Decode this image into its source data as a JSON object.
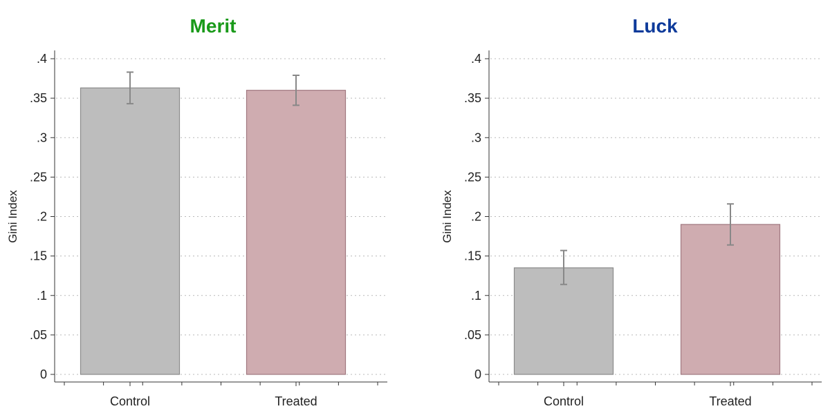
{
  "chart_data": [
    {
      "type": "bar",
      "title": "Merit",
      "title_color": "#1a9a1a",
      "ylabel": "Gini Index",
      "categories": [
        "Control",
        "Treated"
      ],
      "values": [
        0.363,
        0.36
      ],
      "error_low": [
        0.343,
        0.341
      ],
      "error_high": [
        0.383,
        0.379
      ],
      "bar_colors": [
        "#bdbdbd",
        "#cfacb0"
      ],
      "ylim": [
        0,
        0.4
      ],
      "yticks": [
        0,
        0.05,
        0.1,
        0.15,
        0.2,
        0.25,
        0.3,
        0.35,
        0.4
      ],
      "ytick_labels": [
        "0",
        ".05",
        ".1",
        ".15",
        ".2",
        ".25",
        ".3",
        ".35",
        ".4"
      ],
      "grid": true
    },
    {
      "type": "bar",
      "title": "Luck",
      "title_color": "#0d3a9a",
      "ylabel": "Gini Index",
      "categories": [
        "Control",
        "Treated"
      ],
      "values": [
        0.135,
        0.19
      ],
      "error_low": [
        0.114,
        0.164
      ],
      "error_high": [
        0.157,
        0.216
      ],
      "bar_colors": [
        "#bdbdbd",
        "#cfacb0"
      ],
      "ylim": [
        0,
        0.4
      ],
      "yticks": [
        0,
        0.05,
        0.1,
        0.15,
        0.2,
        0.25,
        0.3,
        0.35,
        0.4
      ],
      "ytick_labels": [
        "0",
        ".05",
        ".1",
        ".15",
        ".2",
        ".25",
        ".3",
        ".35",
        ".4"
      ],
      "grid": true
    }
  ]
}
